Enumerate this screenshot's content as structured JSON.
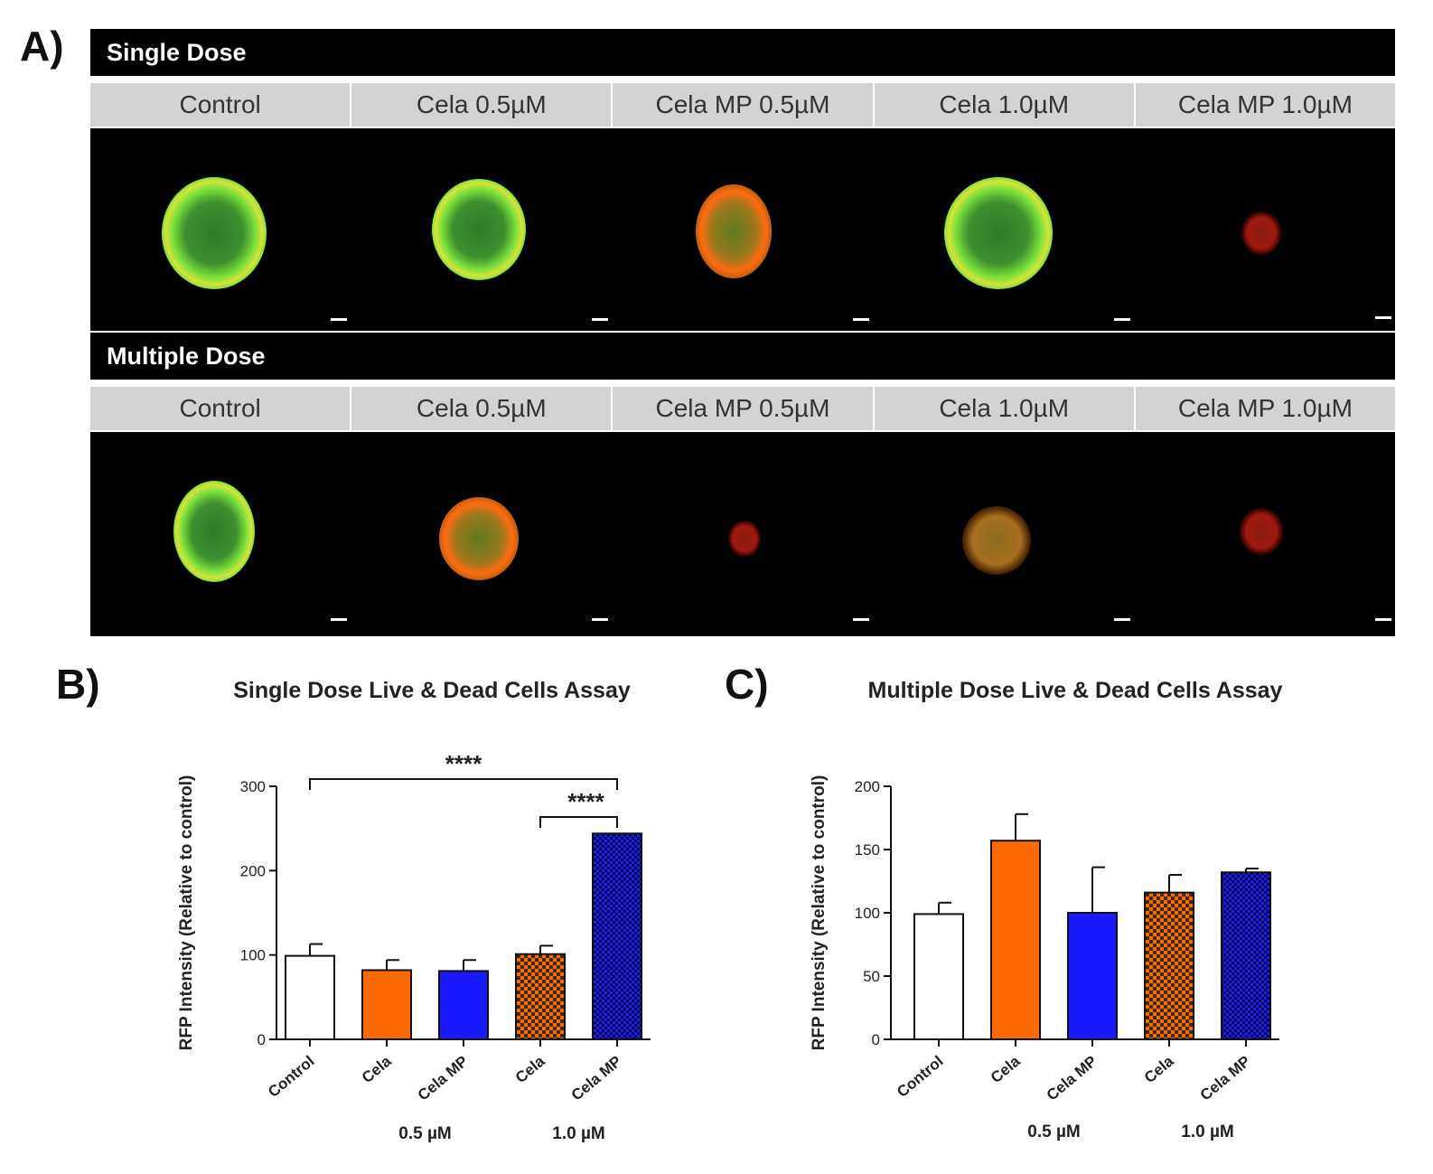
{
  "panelA": {
    "label": "A)",
    "single": {
      "title": "Single Dose",
      "columns": [
        "Control",
        "Cela 0.5µM",
        "Cela MP 0.5µM",
        "Cela 1.0µM",
        "Cela MP 1.0µM"
      ]
    },
    "multiple": {
      "title": "Multiple Dose",
      "columns": [
        "Control",
        "Cela 0.5µM",
        "Cela MP 0.5µM",
        "Cela 1.0µM",
        "Cela MP 1.0µM"
      ]
    }
  },
  "panelB": {
    "label": "B)"
  },
  "panelC": {
    "label": "C)"
  },
  "colors": {
    "control": "#ffffff",
    "cela_orange": "#ff6a00",
    "cela_mp_blue": "#1a1aff",
    "cela_1_check_a": "#ff6a00",
    "cela_1_check_b": "#3a2a1a",
    "cela_mp_1_check_a": "#1a1aff",
    "cela_mp_1_check_b": "#0a0a40"
  },
  "chart_data": [
    {
      "type": "bar",
      "title": "Single Dose Live & Dead Cells Assay",
      "ylabel": "RFP Intensity (Relative to control)",
      "xlabel": "",
      "categories": [
        "Control",
        "Cela",
        "Cela MP",
        "Cela",
        "Cela MP"
      ],
      "concentration_labels": [
        "0.5 µM",
        "1.0 µM"
      ],
      "values": [
        99,
        82,
        81,
        101,
        244
      ],
      "errors": [
        14,
        12,
        13,
        10,
        0
      ],
      "ylim": [
        0,
        300
      ],
      "yticks": [
        0,
        100,
        200,
        300
      ],
      "significance": [
        {
          "from": 0,
          "to": 4,
          "label": "****"
        },
        {
          "from": 3,
          "to": 4,
          "label": "****"
        }
      ],
      "grid": false
    },
    {
      "type": "bar",
      "title": "Multiple Dose Live & Dead Cells Assay",
      "ylabel": "RFP Intensity (Relative to control)",
      "xlabel": "",
      "categories": [
        "Control",
        "Cela",
        "Cela MP",
        "Cela",
        "Cela MP"
      ],
      "concentration_labels": [
        "0.5 µM",
        "1.0 µM"
      ],
      "values": [
        99,
        157,
        100,
        116,
        132
      ],
      "errors": [
        9,
        21,
        36,
        14,
        3
      ],
      "ylim": [
        0,
        200
      ],
      "yticks": [
        0,
        50,
        100,
        150,
        200
      ],
      "significance": [],
      "grid": false
    }
  ]
}
